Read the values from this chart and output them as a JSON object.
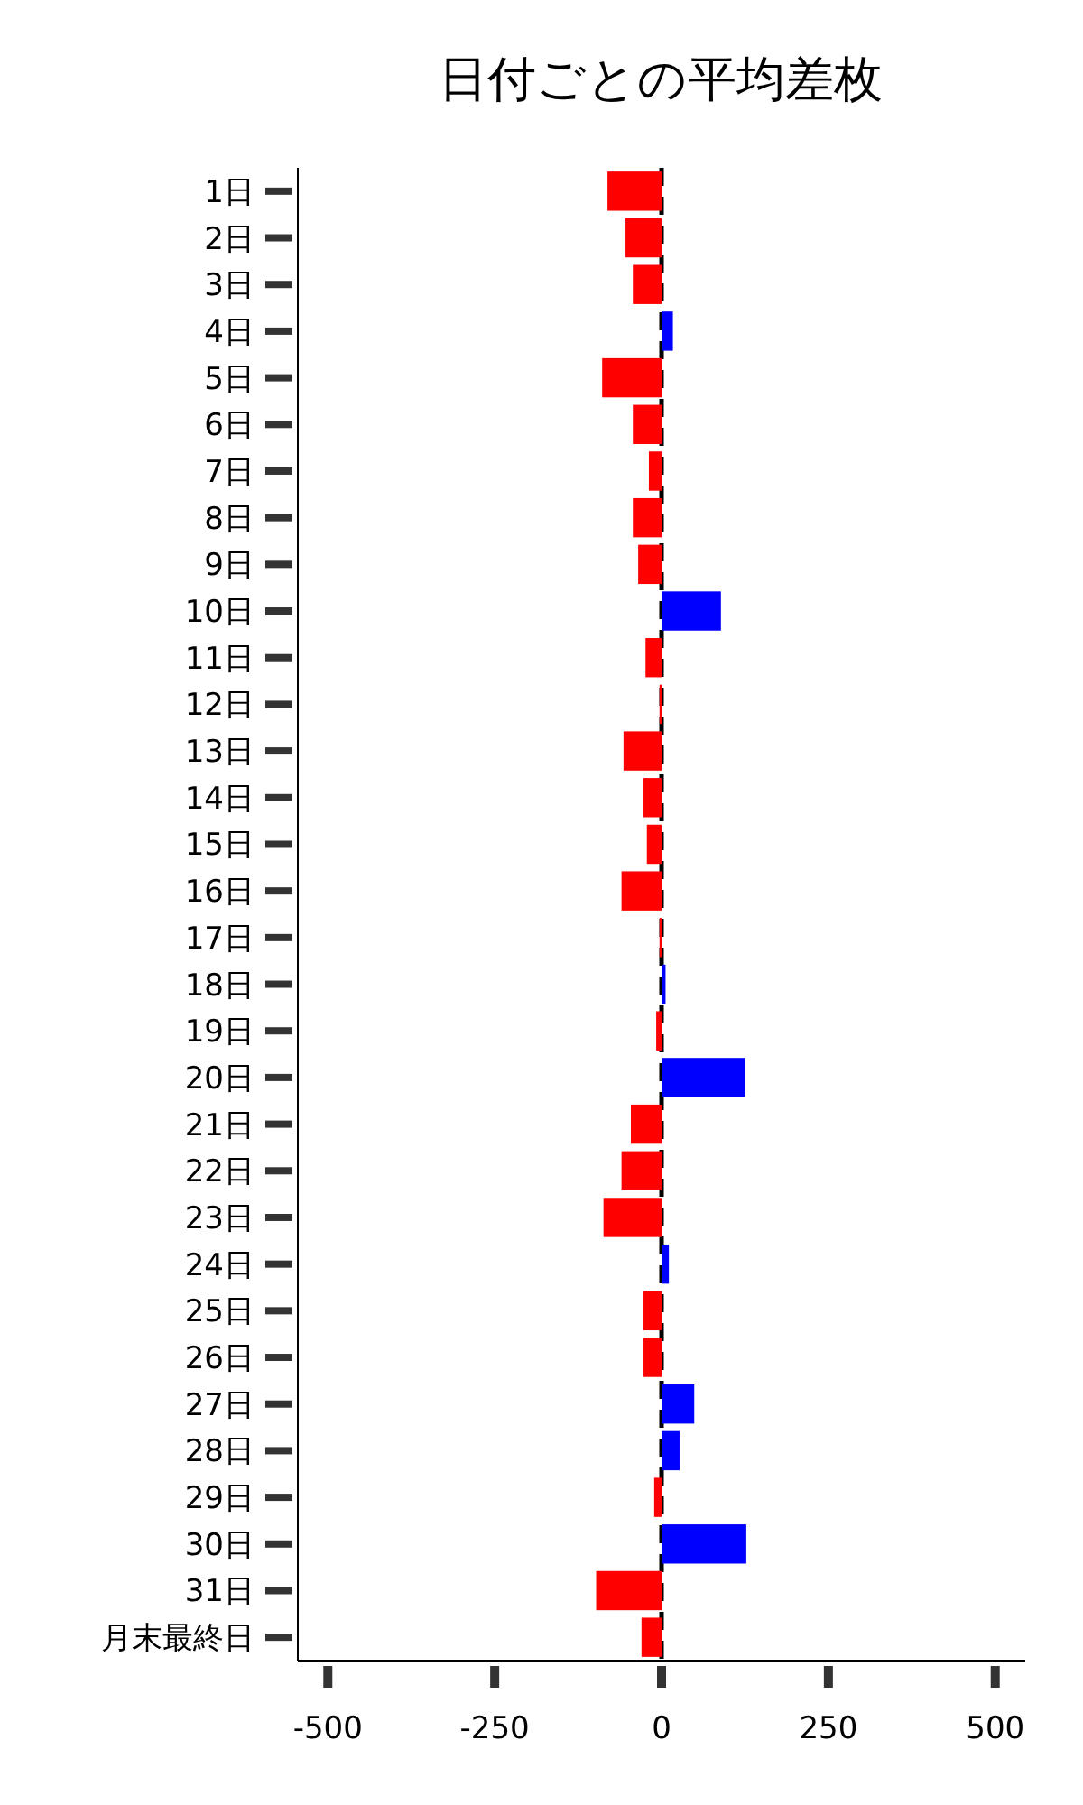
{
  "chart_data": {
    "type": "bar",
    "orientation": "horizontal",
    "title": "日付ごとの平均差枚",
    "categories": [
      "1日",
      "2日",
      "3日",
      "4日",
      "5日",
      "6日",
      "7日",
      "8日",
      "9日",
      "10日",
      "11日",
      "12日",
      "13日",
      "14日",
      "15日",
      "16日",
      "17日",
      "18日",
      "19日",
      "20日",
      "21日",
      "22日",
      "23日",
      "24日",
      "25日",
      "26日",
      "27日",
      "28日",
      "29日",
      "30日",
      "31日",
      "月末最終日"
    ],
    "values": [
      -81,
      -54,
      -43,
      17,
      -89,
      -43,
      -19,
      -43,
      -35,
      89,
      -24,
      -3,
      -57,
      -27,
      -22,
      -60,
      -3,
      6,
      -8,
      125,
      -46,
      -60,
      -87,
      11,
      -27,
      -27,
      49,
      27,
      -11,
      127,
      -98,
      -30
    ],
    "colors": [
      "#ff0000",
      "#ff0000",
      "#ff0000",
      "#0000ff",
      "#ff0000",
      "#ff0000",
      "#ff0000",
      "#ff0000",
      "#ff0000",
      "#0000ff",
      "#ff0000",
      "#ff0000",
      "#ff0000",
      "#ff0000",
      "#ff0000",
      "#ff0000",
      "#ff0000",
      "#0000ff",
      "#ff0000",
      "#0000ff",
      "#ff0000",
      "#ff0000",
      "#ff0000",
      "#0000ff",
      "#ff0000",
      "#ff0000",
      "#0000ff",
      "#0000ff",
      "#ff0000",
      "#0000ff",
      "#ff0000",
      "#ff0000"
    ],
    "xlim": [
      -545,
      545
    ],
    "xticks": [
      -500,
      -250,
      0,
      250,
      500
    ],
    "ref_lines": [
      {
        "axis": "x",
        "value": 0,
        "color": "#000000",
        "line_style": "dashed"
      }
    ]
  }
}
